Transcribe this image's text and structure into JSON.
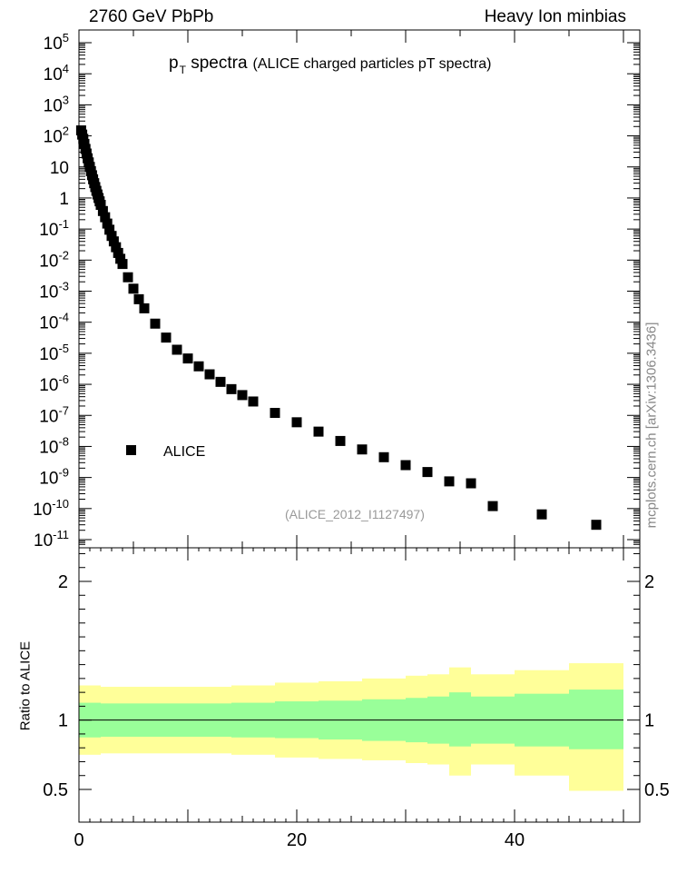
{
  "header": {
    "left_label": "2760 GeV PbPb",
    "right_label": "Heavy Ion minbias"
  },
  "title": {
    "main": "p",
    "sub": "T",
    "main_rest": " spectra",
    "description": "(ALICE charged particles pT spectra)"
  },
  "legend": {
    "label": "ALICE"
  },
  "analysis_id": "(ALICE_2012_I1127497)",
  "watermark": "mcplots.cern.ch [arXiv:1306.3436]",
  "ratio_ylabel": "Ratio to ALICE",
  "colors": {
    "marker": "#000000",
    "band_inner": "#99ff99",
    "band_outer": "#ffff99",
    "analysis_id": "#999999",
    "watermark": "#888888"
  },
  "chart_data": [
    {
      "type": "scatter",
      "panel": "main",
      "yscale": "log",
      "xlim": [
        0,
        51.5
      ],
      "ylim": [
        1e-11,
        100000.0
      ],
      "ytick_powers": [
        -11,
        -10,
        -9,
        -8,
        -7,
        -6,
        -5,
        -4,
        -3,
        -2,
        -1,
        0,
        1,
        2,
        3,
        4,
        5
      ],
      "ytick_labels": [
        "10^-11",
        "10^-10",
        "10^-9",
        "10^-8",
        "10^-7",
        "10^-6",
        "10^-5",
        "10^-4",
        "10^-3",
        "10^-2",
        "10^-1",
        "1",
        "10",
        "10^2",
        "10^3",
        "10^4",
        "10^5"
      ],
      "series": [
        {
          "name": "ALICE",
          "x": [
            0.2,
            0.3,
            0.4,
            0.5,
            0.6,
            0.7,
            0.8,
            0.9,
            1.0,
            1.1,
            1.2,
            1.3,
            1.4,
            1.5,
            1.6,
            1.7,
            1.8,
            1.9,
            2.0,
            2.2,
            2.4,
            2.6,
            2.8,
            3.0,
            3.2,
            3.4,
            3.6,
            3.8,
            4.0,
            4.5,
            5.0,
            5.5,
            6.0,
            7.0,
            8.0,
            9.0,
            10.0,
            11.0,
            12.0,
            13.0,
            14.0,
            15.0,
            16.0,
            18.0,
            20.0,
            22.0,
            24.0,
            26.0,
            28.0,
            30.0,
            32.0,
            34.0,
            36.0,
            38.0,
            42.5,
            47.5
          ],
          "y": [
            150,
            110,
            80,
            55,
            38,
            27,
            19,
            14,
            10,
            7.3,
            5.4,
            4.0,
            3.0,
            2.25,
            1.7,
            1.3,
            1.0,
            0.78,
            0.6,
            0.38,
            0.24,
            0.15,
            0.095,
            0.06,
            0.04,
            0.026,
            0.017,
            0.011,
            0.0075,
            0.0028,
            0.0012,
            0.00055,
            0.00028,
            9e-05,
            3.2e-05,
            1.3e-05,
            6.8e-06,
            3.8e-06,
            2.1e-06,
            1.2e-06,
            7e-07,
            4.5e-07,
            2.8e-07,
            1.2e-07,
            6e-08,
            3e-08,
            1.5e-08,
            8e-09,
            4.5e-09,
            2.5e-09,
            1.5e-09,
            7.5e-10,
            6.5e-10,
            1.2e-10,
            6.5e-11,
            3e-11
          ]
        }
      ]
    },
    {
      "type": "area",
      "panel": "ratio",
      "xlim": [
        0,
        51.5
      ],
      "ylim": [
        0.35,
        2.35
      ],
      "yticks": [
        0.5,
        1,
        2
      ],
      "ytick_labels": [
        "0.5",
        "1",
        "2"
      ],
      "xticks": [
        0,
        20,
        40
      ],
      "xtick_labels": [
        "0",
        "20",
        "40"
      ],
      "reference_line": 1,
      "bins": [
        {
          "x0": 0,
          "x1": 2,
          "inner": [
            0.875,
            1.125
          ],
          "outer": [
            0.75,
            1.25
          ]
        },
        {
          "x0": 2,
          "x1": 8,
          "inner": [
            0.88,
            1.12
          ],
          "outer": [
            0.76,
            1.24
          ]
        },
        {
          "x0": 8,
          "x1": 14,
          "inner": [
            0.88,
            1.12
          ],
          "outer": [
            0.76,
            1.24
          ]
        },
        {
          "x0": 14,
          "x1": 18,
          "inner": [
            0.875,
            1.125
          ],
          "outer": [
            0.75,
            1.25
          ]
        },
        {
          "x0": 18,
          "x1": 22,
          "inner": [
            0.87,
            1.135
          ],
          "outer": [
            0.73,
            1.27
          ]
        },
        {
          "x0": 22,
          "x1": 26,
          "inner": [
            0.86,
            1.14
          ],
          "outer": [
            0.72,
            1.28
          ]
        },
        {
          "x0": 26,
          "x1": 30,
          "inner": [
            0.85,
            1.15
          ],
          "outer": [
            0.71,
            1.3
          ]
        },
        {
          "x0": 30,
          "x1": 32,
          "inner": [
            0.84,
            1.16
          ],
          "outer": [
            0.69,
            1.32
          ]
        },
        {
          "x0": 32,
          "x1": 34,
          "inner": [
            0.83,
            1.17
          ],
          "outer": [
            0.68,
            1.33
          ]
        },
        {
          "x0": 34,
          "x1": 36,
          "inner": [
            0.81,
            1.2
          ],
          "outer": [
            0.6,
            1.38
          ]
        },
        {
          "x0": 36,
          "x1": 40,
          "inner": [
            0.83,
            1.17
          ],
          "outer": [
            0.68,
            1.33
          ]
        },
        {
          "x0": 40,
          "x1": 45,
          "inner": [
            0.81,
            1.19
          ],
          "outer": [
            0.6,
            1.36
          ]
        },
        {
          "x0": 45,
          "x1": 50,
          "inner": [
            0.79,
            1.22
          ],
          "outer": [
            0.49,
            1.41
          ]
        }
      ]
    }
  ]
}
